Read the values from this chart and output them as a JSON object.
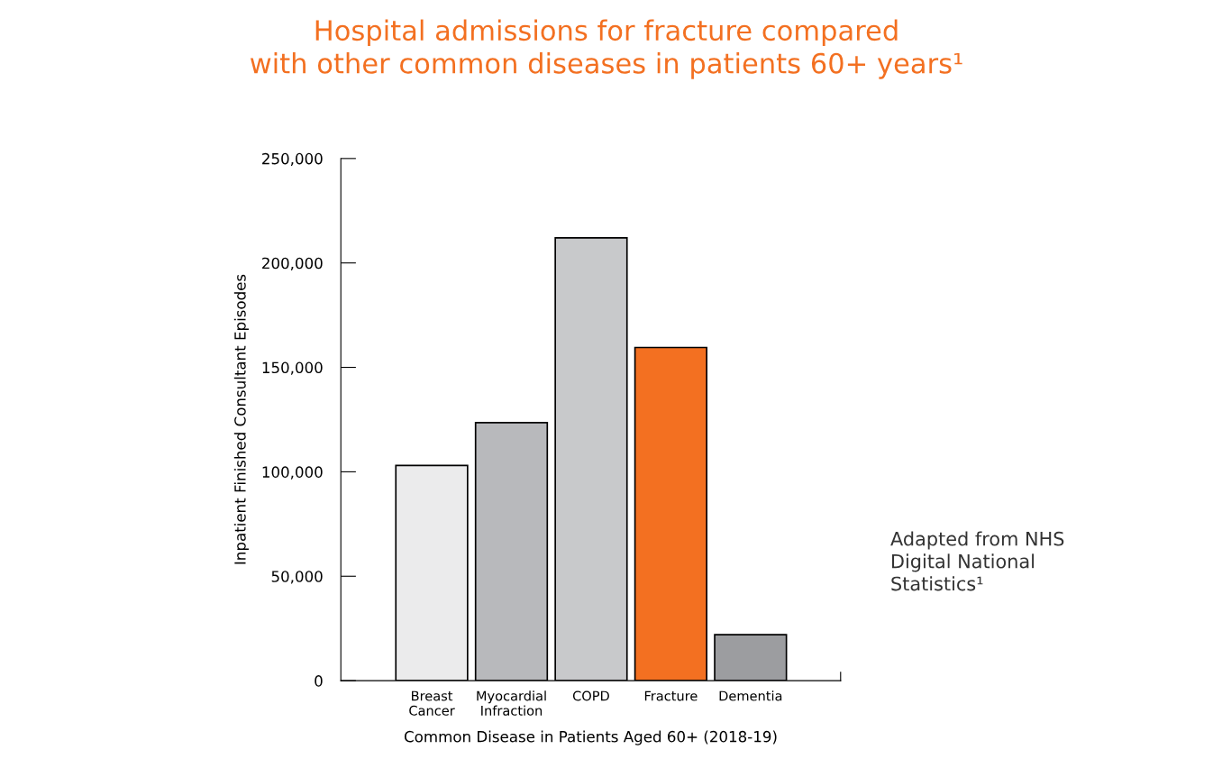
{
  "chart_data": {
    "type": "bar",
    "title": "Hospital admissions for fracture compared\nwith other common diseases in patients 60+ years¹",
    "xlabel": "Common Disease in Patients Aged 60+ (2018-19)",
    "ylabel": "Inpatient Finished Consultant Episodes",
    "categories": [
      "Breast\nCancer",
      "Myocardial\nInfraction",
      "COPD",
      "Fracture",
      "Dementia"
    ],
    "values": [
      103000,
      123500,
      212000,
      159500,
      22000
    ],
    "colors": [
      "#ebebec",
      "#b8b9bc",
      "#c8c9cb",
      "#f37021",
      "#9c9da0"
    ],
    "ylim": [
      0,
      250000
    ],
    "yticks": [
      {
        "value": 0,
        "label": "0"
      },
      {
        "value": 50000,
        "label": "50,000"
      },
      {
        "value": 100000,
        "label": "100,000"
      },
      {
        "value": 150000,
        "label": "150,000"
      },
      {
        "value": 200000,
        "label": "200,000"
      },
      {
        "value": 250000,
        "label": "250,000"
      }
    ],
    "annotations": [
      "Adapted from NHS\nDigital National\nStatistics¹"
    ],
    "grid": false,
    "legend": false
  }
}
